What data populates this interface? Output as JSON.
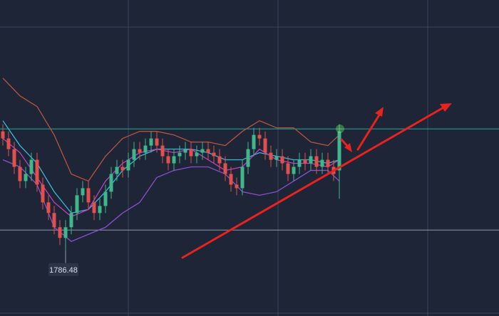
{
  "chart_data": {
    "type": "candlestick",
    "ylim": [
      1768,
      1857
    ],
    "candles": 60,
    "up_color": "#3fb68b",
    "down_color": "#e2504b",
    "open": [
      1820,
      1818,
      1815,
      1810,
      1806,
      1808,
      1812,
      1805,
      1800,
      1797,
      1793,
      1790,
      1793,
      1797,
      1802,
      1804,
      1800,
      1797,
      1799,
      1803,
      1808,
      1810,
      1809,
      1812,
      1815,
      1814,
      1816,
      1818,
      1816,
      1813,
      1811,
      1813,
      1814,
      1815,
      1813,
      1814,
      1815,
      1814,
      1813,
      1811,
      1808,
      1805,
      1804,
      1810,
      1815,
      1819,
      1818,
      1814,
      1812,
      1813,
      1811,
      1808,
      1810,
      1812,
      1811,
      1813,
      1810,
      1812,
      1810,
      1809
    ],
    "high": [
      1822,
      1820,
      1817,
      1812,
      1810,
      1814,
      1814,
      1807,
      1802,
      1799,
      1795,
      1795,
      1799,
      1804,
      1806,
      1806,
      1802,
      1801,
      1805,
      1810,
      1812,
      1812,
      1814,
      1817,
      1817,
      1818,
      1820,
      1820,
      1818,
      1815,
      1815,
      1816,
      1817,
      1817,
      1816,
      1817,
      1817,
      1816,
      1815,
      1813,
      1810,
      1807,
      1812,
      1817,
      1821,
      1821,
      1820,
      1816,
      1815,
      1815,
      1813,
      1812,
      1814,
      1814,
      1815,
      1815,
      1814,
      1814,
      1812,
      1822
    ],
    "low": [
      1816,
      1813,
      1808,
      1804,
      1804,
      1806,
      1803,
      1798,
      1795,
      1791,
      1788,
      1786.48,
      1791,
      1795,
      1800,
      1798,
      1795,
      1795,
      1797,
      1801,
      1806,
      1807,
      1807,
      1810,
      1812,
      1812,
      1814,
      1814,
      1811,
      1809,
      1809,
      1811,
      1812,
      1811,
      1811,
      1812,
      1812,
      1811,
      1809,
      1806,
      1803,
      1802,
      1802,
      1808,
      1813,
      1816,
      1812,
      1810,
      1810,
      1809,
      1806,
      1806,
      1808,
      1809,
      1809,
      1808,
      1808,
      1808,
      1806,
      1801
    ],
    "close": [
      1818,
      1815,
      1810,
      1806,
      1808,
      1812,
      1805,
      1800,
      1797,
      1793,
      1790,
      1793,
      1797,
      1802,
      1804,
      1800,
      1797,
      1799,
      1803,
      1808,
      1810,
      1809,
      1812,
      1815,
      1814,
      1816,
      1818,
      1816,
      1813,
      1811,
      1813,
      1814,
      1815,
      1813,
      1814,
      1815,
      1814,
      1813,
      1811,
      1808,
      1805,
      1804,
      1810,
      1815,
      1819,
      1818,
      1814,
      1812,
      1813,
      1811,
      1808,
      1810,
      1812,
      1811,
      1813,
      1810,
      1812,
      1810,
      1808,
      1820
    ],
    "low_label_index": 11,
    "lines": [
      {
        "color": "#b5543f",
        "x": [
          0,
          3,
          6,
          9,
          12,
          15,
          18,
          21,
          24,
          27,
          30,
          33,
          36,
          39,
          42,
          45,
          48,
          51,
          54,
          57,
          59
        ],
        "values": [
          1835,
          1830,
          1827,
          1819,
          1808,
          1806,
          1813,
          1818,
          1820,
          1820,
          1819,
          1817,
          1817,
          1816,
          1820,
          1823,
          1821,
          1821,
          1817,
          1816,
          1819
        ]
      },
      {
        "color": "#8a4fd0",
        "x": [
          0,
          3,
          6,
          9,
          12,
          15,
          18,
          21,
          24,
          27,
          30,
          33,
          36,
          39,
          42,
          45,
          48,
          51,
          54,
          57,
          59
        ],
        "values": [
          1812,
          1810,
          1805,
          1793,
          1789,
          1791,
          1793,
          1797,
          1800,
          1807,
          1809,
          1810,
          1810,
          1808,
          1803,
          1802,
          1803,
          1806,
          1809,
          1809,
          1806
        ]
      },
      {
        "color": "#3bb8d8",
        "x": [
          0,
          3,
          6,
          9,
          12,
          15,
          18,
          21,
          24,
          27,
          30,
          33,
          36,
          39,
          42,
          45,
          48,
          51,
          54,
          57,
          59
        ],
        "values": [
          1823,
          1816,
          1811,
          1803,
          1797,
          1798,
          1803,
          1809,
          1813,
          1815,
          1815,
          1815,
          1814,
          1812,
          1812,
          1814,
          1813,
          1812,
          1812,
          1811,
          1812
        ]
      },
      {
        "color": "#c040c0",
        "x": [
          0,
          3,
          6,
          9,
          12,
          15,
          18,
          21,
          24,
          27,
          30,
          33,
          36,
          39,
          42,
          45,
          48,
          51,
          54,
          57,
          59
        ],
        "values": [
          1818,
          1814,
          1807,
          1800,
          1796,
          1798,
          1806,
          1811,
          1814,
          1815,
          1814,
          1815,
          1812,
          1809,
          1810,
          1815,
          1812,
          1811,
          1811,
          1810,
          1812
        ]
      }
    ],
    "hlines": [
      {
        "value": 1820.7,
        "color": "#2aa79a"
      },
      {
        "value": 1792.2,
        "color": "#8f97a8"
      }
    ]
  }
}
